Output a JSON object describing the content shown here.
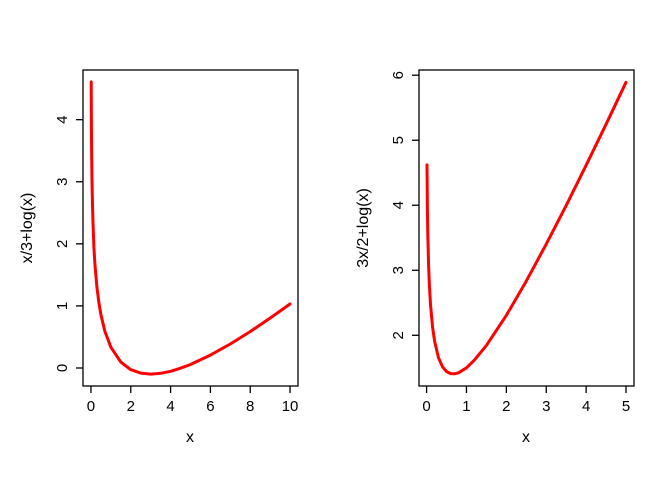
{
  "page": {
    "background": "#ffffff",
    "axis_color": "#000000"
  },
  "chart_data": [
    {
      "type": "line",
      "title": "",
      "xlabel": "x",
      "ylabel": "x/3+log(x)",
      "xlim": [
        -0.4,
        10.4
      ],
      "ylim": [
        -0.29,
        4.8
      ],
      "xticks": [
        0,
        2,
        4,
        6,
        8,
        10
      ],
      "yticks": [
        0,
        1,
        2,
        3,
        4
      ],
      "grid": false,
      "legend": false,
      "line_color": "#ff0000",
      "line_width": 3,
      "series": [
        {
          "x": [
            0.01,
            0.02,
            0.03,
            0.05,
            0.07,
            0.1,
            0.15,
            0.2,
            0.3,
            0.4,
            0.5,
            0.7,
            1,
            1.5,
            2,
            2.5,
            3,
            3.5,
            4,
            4.5,
            5,
            6,
            7,
            8,
            9,
            10
          ],
          "y": [
            4.609,
            3.919,
            3.517,
            3.012,
            2.682,
            2.336,
            1.947,
            1.676,
            1.304,
            1.05,
            0.86,
            0.59,
            0.333,
            0.095,
            -0.027,
            -0.083,
            -0.099,
            -0.086,
            -0.053,
            -0.004,
            0.057,
            0.208,
            0.387,
            0.587,
            0.803,
            1.031
          ]
        }
      ]
    },
    {
      "type": "line",
      "title": "",
      "xlabel": "x",
      "ylabel": "3x/2+log(x)",
      "xlim": [
        -0.19,
        5.2
      ],
      "ylim": [
        1.22,
        6.08
      ],
      "xticks": [
        0,
        1,
        2,
        3,
        4,
        5
      ],
      "yticks": [
        2,
        3,
        4,
        5,
        6
      ],
      "grid": false,
      "legend": false,
      "line_color": "#ff0000",
      "line_width": 3,
      "series": [
        {
          "x": [
            0.01,
            0.02,
            0.03,
            0.05,
            0.07,
            0.1,
            0.15,
            0.2,
            0.3,
            0.4,
            0.5,
            0.6,
            0.7,
            0.8,
            1,
            1.2,
            1.5,
            2,
            2.5,
            3,
            3.5,
            4,
            4.5,
            5
          ],
          "y": [
            4.62,
            3.942,
            3.552,
            3.071,
            2.764,
            2.453,
            2.122,
            1.909,
            1.654,
            1.516,
            1.443,
            1.411,
            1.407,
            1.423,
            1.5,
            1.618,
            1.845,
            2.307,
            2.834,
            3.401,
            3.997,
            4.614,
            5.246,
            5.891
          ]
        }
      ]
    }
  ]
}
